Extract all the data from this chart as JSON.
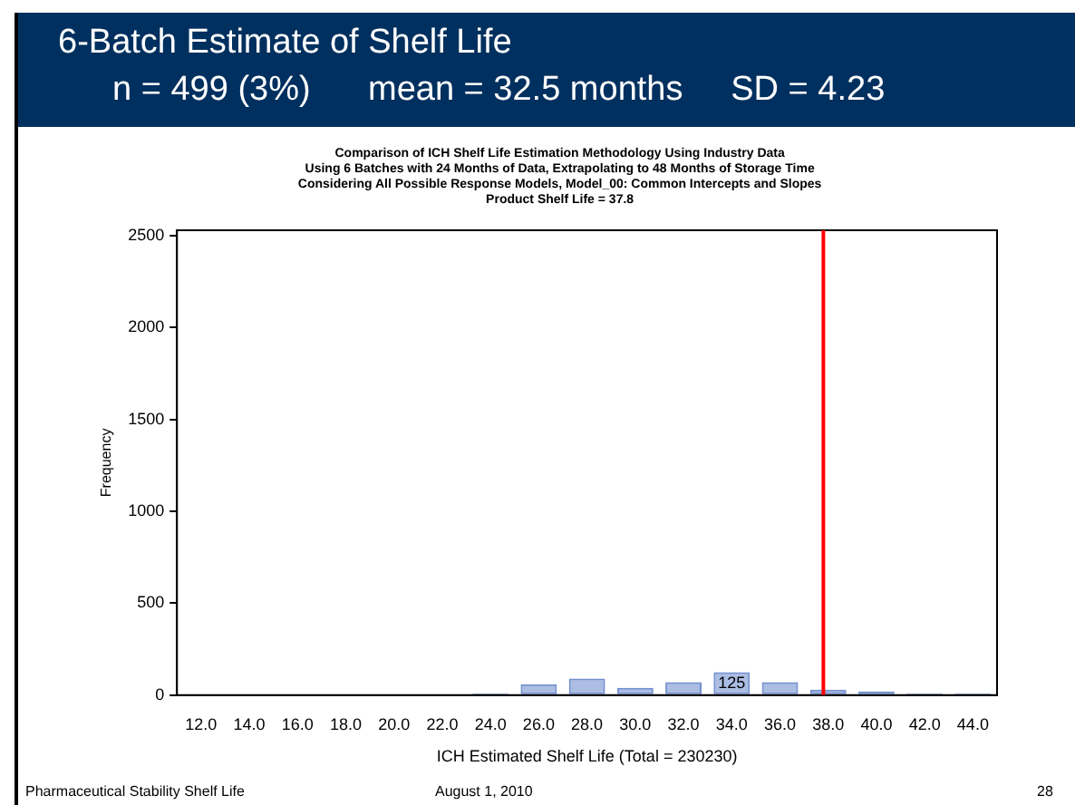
{
  "chart_data": {
    "type": "bar",
    "title": "6-Batch Estimate of Shelf Life",
    "subtitle": "n = 499 (3%)      mean = 32.5 months     SD = 4.23",
    "annotations": [
      "Comparison of ICH Shelf Life Estimation Methodology Using Industry Data\nUsing 6 Batches with 24 Months of Data, Extrapolating to 48 Months of Storage Time\nConsidering All Possible Response Models, Model_00: Common Intercepts and Slopes\nProduct Shelf Life = 37.8",
      "Pharmaceutical Stability Shelf Life",
      "August 1, 2010",
      "28"
    ],
    "xlabel": "ICH Estimated Shelf Life (Total = 230230)",
    "ylabel": "Frequency",
    "x": [
      12,
      14,
      16,
      18,
      20,
      22,
      24,
      26,
      28,
      30,
      32,
      34,
      36,
      38,
      40,
      42,
      44
    ],
    "values": [
      0,
      0,
      0,
      0,
      0,
      0,
      10,
      60,
      90,
      40,
      70,
      125,
      70,
      30,
      20,
      10,
      10
    ],
    "value_labels": [
      null,
      null,
      null,
      null,
      null,
      null,
      null,
      null,
      null,
      null,
      null,
      "125",
      null,
      null,
      null,
      null,
      null
    ],
    "color": "#7391d0",
    "xlim": [
      11,
      45
    ],
    "xticks": [
      {
        "value": 12,
        "label": "12.0"
      },
      {
        "value": 14,
        "label": "14.0"
      },
      {
        "value": 16,
        "label": "16.0"
      },
      {
        "value": 18,
        "label": "18.0"
      },
      {
        "value": 20,
        "label": "20.0"
      },
      {
        "value": 22,
        "label": "22.0"
      },
      {
        "value": 24,
        "label": "24.0"
      },
      {
        "value": 26,
        "label": "26.0"
      },
      {
        "value": 28,
        "label": "28.0"
      },
      {
        "value": 30,
        "label": "30.0"
      },
      {
        "value": 32,
        "label": "32.0"
      },
      {
        "value": 34,
        "label": "34.0"
      },
      {
        "value": 36,
        "label": "36.0"
      },
      {
        "value": 38,
        "label": "38.0"
      },
      {
        "value": 40,
        "label": "40.0"
      },
      {
        "value": 42,
        "label": "42.0"
      },
      {
        "value": 44,
        "label": "44.0"
      }
    ],
    "ylim": [
      0,
      2530
    ],
    "yticks": [
      0,
      500,
      1000,
      1500,
      2000,
      2500
    ],
    "ref_lines": [
      {
        "axis": "x",
        "value": 37.8,
        "color": "#ff0000"
      }
    ],
    "grid": false
  }
}
